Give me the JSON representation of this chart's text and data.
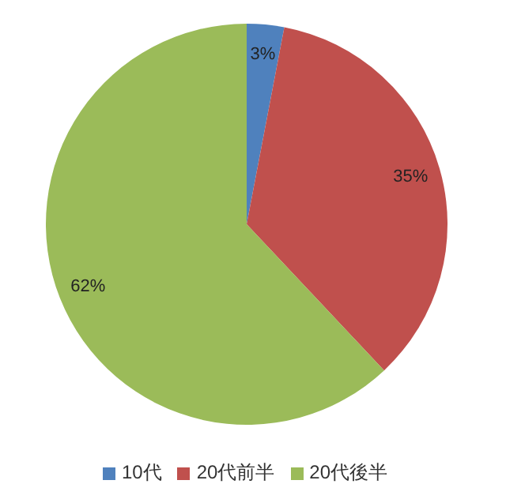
{
  "chart_data": {
    "type": "pie",
    "categories": [
      "10代",
      "20代前半",
      "20代後半"
    ],
    "values": [
      3,
      35,
      62
    ],
    "colors": [
      "#4f81bd",
      "#c0504d",
      "#9bbb59"
    ],
    "value_labels": [
      "3%",
      "35%",
      "62%"
    ],
    "legend": "bottom"
  }
}
